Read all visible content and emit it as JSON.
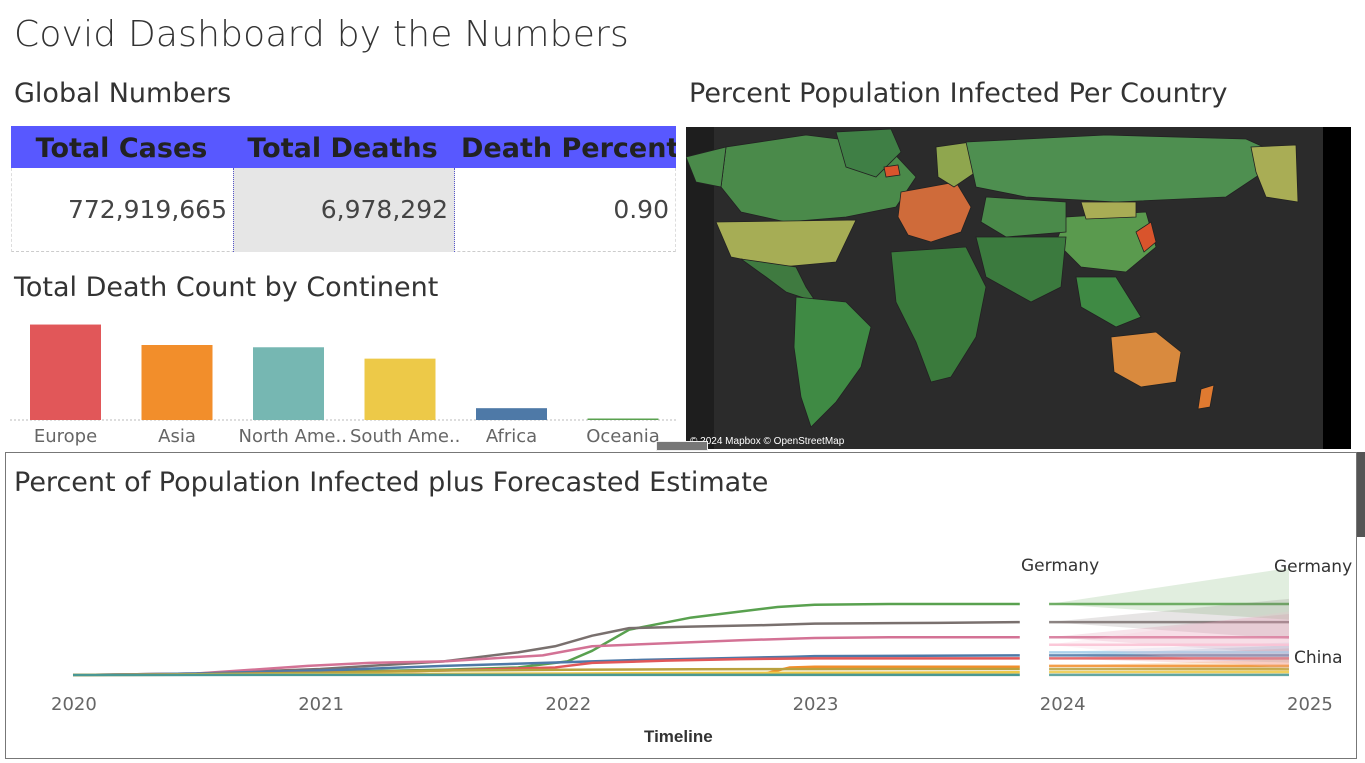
{
  "dashboard": {
    "title": "Covid Dashboard by the Numbers"
  },
  "global_numbers": {
    "title": "Global Numbers",
    "headers": [
      "Total Cases",
      "Total Deaths",
      "Death Percent.."
    ],
    "values": [
      "772,919,665",
      "6,978,292",
      "0.90"
    ],
    "header_color": "#5858ff"
  },
  "map": {
    "title": "Percent Population Infected Per Country",
    "credit": "© 2024 Mapbox © OpenStreetMap"
  },
  "forecast": {
    "title": "Percent of Population Infected plus Forecasted Estimate",
    "xlabel": "Timeline",
    "series_labels": {
      "germany_left": "Germany",
      "germany_right": "Germany",
      "china": "China"
    }
  },
  "chart_data": [
    {
      "type": "bar",
      "title": "Total Death Count by Continent",
      "categories": [
        "Europe",
        "Asia",
        "North Ame..",
        "South Ame..",
        "Africa",
        "Oceania"
      ],
      "values": [
        2100000,
        1650000,
        1600000,
        1350000,
        260000,
        28000
      ],
      "colors": [
        "#e15759",
        "#f28e2b",
        "#76b7b2",
        "#edc948",
        "#4e79a7",
        "#59a14f"
      ],
      "ylim": [
        0,
        2200000
      ],
      "grid": false
    },
    {
      "type": "line",
      "title": "Percent of Population Infected plus Forecasted Estimate",
      "xlabel": "Timeline",
      "ylabel": "",
      "x_ticks": [
        "2020",
        "2021",
        "2022",
        "2023",
        "2024",
        "2025"
      ],
      "xlim": [
        2020.0,
        2025.0
      ],
      "ylim": [
        0,
        100
      ],
      "forecast_start": 2023.9,
      "series": [
        {
          "color": "#59a14f",
          "x": [
            2020.0,
            2020.5,
            2021.0,
            2021.5,
            2021.8,
            2022.0,
            2022.1,
            2022.25,
            2022.5,
            2022.7,
            2022.85,
            2023.0,
            2023.3,
            2023.83
          ],
          "y": [
            0,
            0.5,
            2,
            3.5,
            5,
            9,
            16,
            30,
            38,
            42,
            45,
            46.5,
            47,
            47
          ],
          "forecast": {
            "y": 47,
            "band": [
              42,
              60
            ]
          }
        },
        {
          "color": "#79706e",
          "x": [
            2020.0,
            2020.5,
            2021.0,
            2021.5,
            2021.8,
            2021.95,
            2022.1,
            2022.25,
            2022.5,
            2022.8,
            2023.0,
            2023.5,
            2023.83
          ],
          "y": [
            0,
            1,
            4,
            9,
            15,
            19,
            26,
            31,
            32,
            33,
            34,
            34.5,
            35
          ],
          "forecast": {
            "y": 35,
            "band": [
              28,
              42
            ]
          }
        },
        {
          "color": "#d37295",
          "x": [
            2020.0,
            2020.5,
            2020.95,
            2021.2,
            2021.5,
            2021.9,
            2022.1,
            2022.4,
            2022.7,
            2023.0,
            2023.3,
            2023.83
          ],
          "y": [
            0,
            1,
            6,
            8,
            9,
            13,
            19,
            21,
            23,
            24.5,
            25,
            25
          ],
          "forecast": {
            "y": 25,
            "band": [
              18,
              32
            ]
          }
        },
        {
          "color": "#4e79a7",
          "x": [
            2020.0,
            2020.5,
            2021.0,
            2021.5,
            2022.0,
            2022.3,
            2022.6,
            2022.9,
            2023.0,
            2023.83
          ],
          "y": [
            0,
            1,
            3,
            6,
            8.5,
            10,
            11,
            12,
            12.5,
            13
          ],
          "forecast": {
            "y": 13,
            "band": [
              10,
              16
            ]
          }
        },
        {
          "color": "#e15759",
          "x": [
            2020.0,
            2020.5,
            2021.0,
            2021.5,
            2021.95,
            2022.1,
            2022.4,
            2022.7,
            2023.0,
            2023.83
          ],
          "y": [
            0,
            0.5,
            1.5,
            3,
            5,
            8,
            9.5,
            10.5,
            11,
            11
          ],
          "forecast": {
            "y": 11,
            "band": [
              8,
              14
            ]
          }
        },
        {
          "color": "#f28e2b",
          "x": [
            2020.0,
            2021.0,
            2022.0,
            2022.8,
            2022.9,
            2023.0,
            2023.83
          ],
          "y": [
            0,
            0.3,
            0.5,
            1,
            5,
            5.5,
            5.5
          ],
          "forecast": {
            "y": 6,
            "band": [
              4,
              8
            ]
          }
        },
        {
          "color": "#b9a13e",
          "x": [
            2020.0,
            2020.5,
            2021.0,
            2021.5,
            2022.0,
            2022.5,
            2023.0,
            2023.83
          ],
          "y": [
            0,
            0.5,
            1.5,
            3,
            3.5,
            3.8,
            3.9,
            4
          ],
          "forecast": {
            "y": 4,
            "band": [
              3,
              5
            ]
          }
        },
        {
          "color": "#edc948",
          "x": [
            2020.0,
            2021.0,
            2022.0,
            2023.0,
            2023.83
          ],
          "y": [
            0,
            0.5,
            1,
            1.5,
            1.8
          ],
          "forecast": {
            "y": 2,
            "band": [
              1,
              3
            ]
          }
        },
        {
          "color": "#499894",
          "x": [
            2020.0,
            2021.0,
            2022.0,
            2023.0,
            2023.83
          ],
          "y": [
            0,
            0.1,
            0.1,
            0.1,
            0.1
          ],
          "forecast": {
            "y": 0.1,
            "band": [
              0,
              0.5
            ]
          }
        },
        {
          "color": "#a0cbe8",
          "forecast_only": true,
          "forecast": {
            "y": 15,
            "band": [
              12,
              18
            ]
          }
        },
        {
          "color": "#fabfd2",
          "forecast_only": true,
          "forecast": {
            "y": 20,
            "band": [
              10,
              30
            ]
          }
        }
      ]
    }
  ]
}
